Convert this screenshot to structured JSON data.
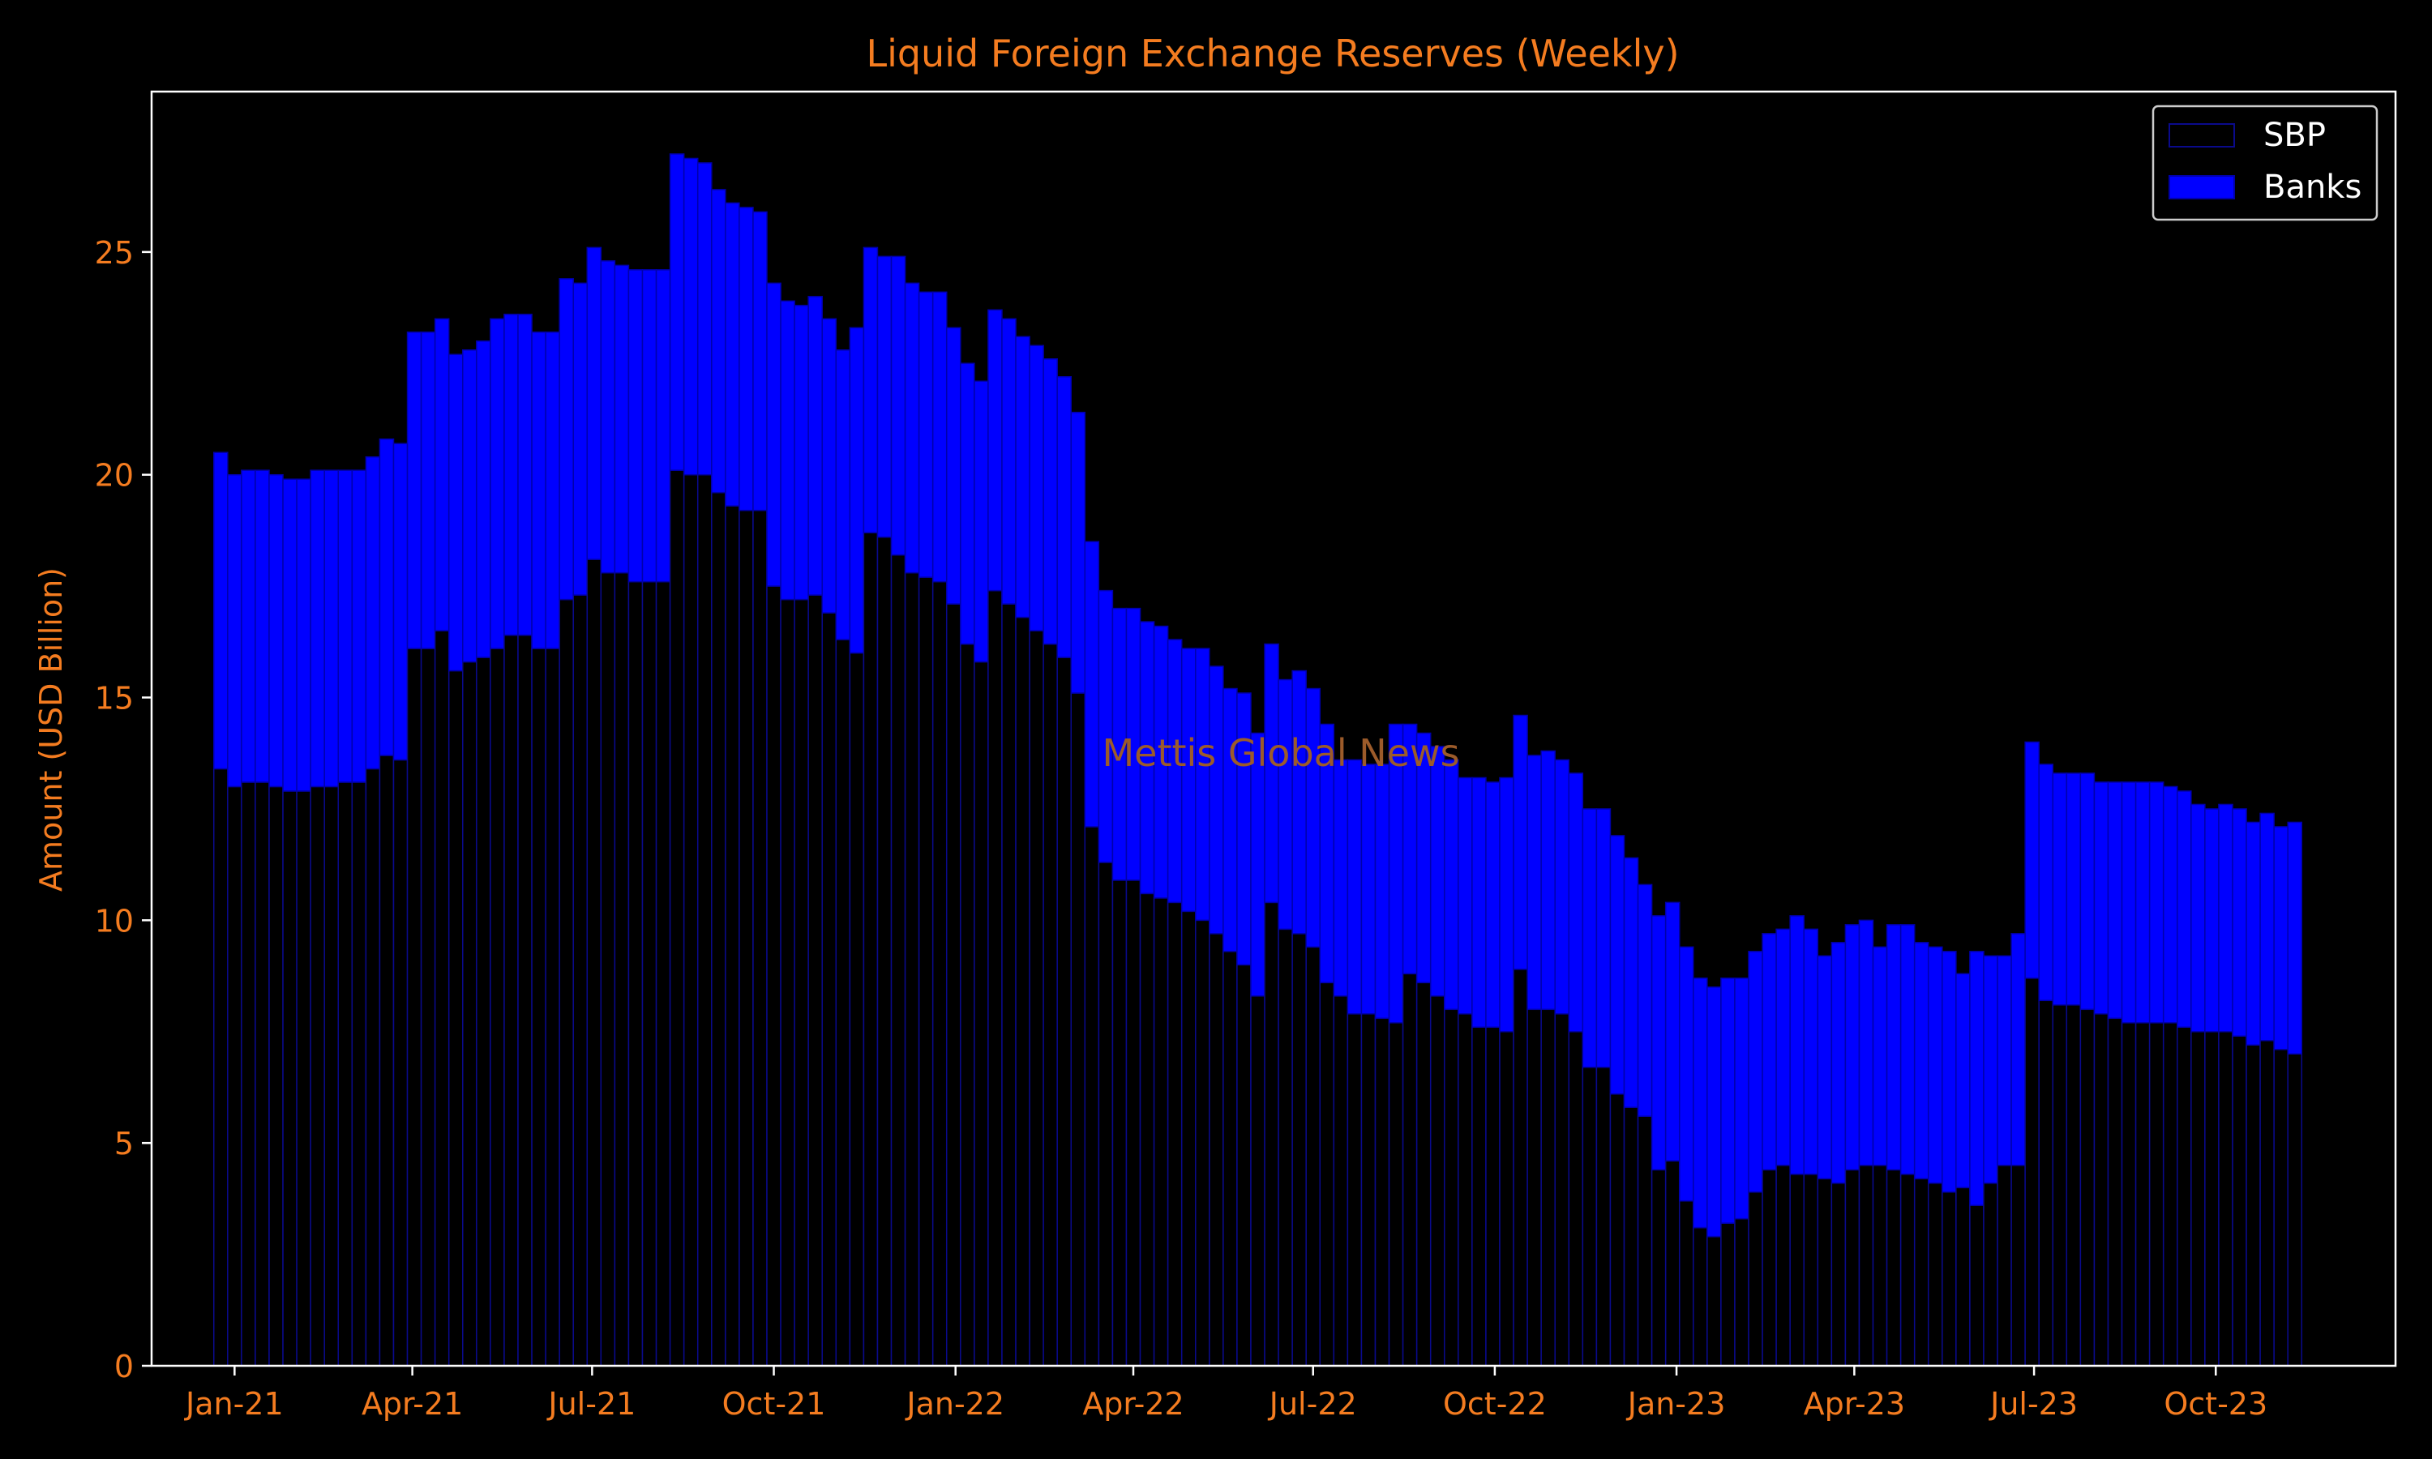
{
  "colors": {
    "background": "#000000",
    "text": "#f47c20",
    "axes": "#ffffff",
    "sbp_fill": "#000000",
    "sbp_edge": "#0a0a8c",
    "banks_fill": "#0000ff",
    "banks_edge": "#0000aa",
    "watermark": "#9c5b2a",
    "legend_text": "#ffffff"
  },
  "watermark": "Mettis Global News",
  "chart_data": {
    "type": "bar",
    "stacked": true,
    "title": "Liquid Foreign Exchange Reserves (Weekly)",
    "xlabel": "",
    "ylabel": "Amount (USD Billion)",
    "ylim": [
      0,
      28.6
    ],
    "yticks": [
      0,
      5,
      10,
      15,
      20,
      25
    ],
    "x_start": "2020-12-25",
    "xlim": [
      "2020-11-20",
      "2023-12-31"
    ],
    "xticks": [
      {
        "date": "2021-01-01",
        "label": "Jan-21"
      },
      {
        "date": "2021-04-01",
        "label": "Apr-21"
      },
      {
        "date": "2021-07-01",
        "label": "Jul-21"
      },
      {
        "date": "2021-10-01",
        "label": "Oct-21"
      },
      {
        "date": "2022-01-01",
        "label": "Jan-22"
      },
      {
        "date": "2022-04-01",
        "label": "Apr-22"
      },
      {
        "date": "2022-07-01",
        "label": "Jul-22"
      },
      {
        "date": "2022-10-01",
        "label": "Oct-22"
      },
      {
        "date": "2023-01-01",
        "label": "Jan-23"
      },
      {
        "date": "2023-04-01",
        "label": "Apr-23"
      },
      {
        "date": "2023-07-01",
        "label": "Jul-23"
      },
      {
        "date": "2023-10-01",
        "label": "Oct-23"
      }
    ],
    "legend": {
      "position": "upper right",
      "entries": [
        "SBP",
        "Banks"
      ]
    },
    "grid": false,
    "series": [
      {
        "name": "SBP",
        "values": [
          13.4,
          13.0,
          13.1,
          13.1,
          13.0,
          12.9,
          12.9,
          13.0,
          13.0,
          13.1,
          13.1,
          13.4,
          13.7,
          13.6,
          16.1,
          16.1,
          16.5,
          15.6,
          15.8,
          15.9,
          16.1,
          16.4,
          16.4,
          16.1,
          16.1,
          17.2,
          17.3,
          18.1,
          17.8,
          17.8,
          17.6,
          17.6,
          17.6,
          20.1,
          20.0,
          20.0,
          19.6,
          19.3,
          19.2,
          19.2,
          17.5,
          17.2,
          17.2,
          17.3,
          16.9,
          16.3,
          16.0,
          18.7,
          18.6,
          18.2,
          17.8,
          17.7,
          17.6,
          17.1,
          16.2,
          15.8,
          17.4,
          17.1,
          16.8,
          16.5,
          16.2,
          15.9,
          15.1,
          12.1,
          11.3,
          10.9,
          10.9,
          10.6,
          10.5,
          10.4,
          10.2,
          10.0,
          9.7,
          9.3,
          9.0,
          8.3,
          10.4,
          9.8,
          9.7,
          9.4,
          8.6,
          8.3,
          7.9,
          7.9,
          7.8,
          7.7,
          8.8,
          8.6,
          8.3,
          8.0,
          7.9,
          7.6,
          7.6,
          7.5,
          8.9,
          8.0,
          8.0,
          7.9,
          7.5,
          6.7,
          6.7,
          6.1,
          5.8,
          5.6,
          4.4,
          4.6,
          3.7,
          3.1,
          2.9,
          3.2,
          3.3,
          3.9,
          4.4,
          4.5,
          4.3,
          4.3,
          4.2,
          4.1,
          4.4,
          4.5,
          4.5,
          4.4,
          4.3,
          4.2,
          4.1,
          3.9,
          4.0,
          3.6,
          4.1,
          4.5,
          4.5,
          8.7,
          8.2,
          8.1,
          8.1,
          8.0,
          7.9,
          7.8,
          7.7,
          7.7,
          7.7,
          7.7,
          7.6,
          7.5,
          7.5,
          7.5,
          7.4,
          7.2,
          7.3,
          7.1,
          7.0
        ]
      },
      {
        "name": "Banks",
        "values": [
          7.1,
          7.0,
          7.0,
          7.0,
          7.0,
          7.0,
          7.0,
          7.1,
          7.1,
          7.0,
          7.0,
          7.0,
          7.1,
          7.1,
          7.1,
          7.1,
          7.0,
          7.1,
          7.0,
          7.1,
          7.4,
          7.2,
          7.2,
          7.1,
          7.1,
          7.2,
          7.0,
          7.0,
          7.0,
          6.9,
          7.0,
          7.0,
          7.0,
          7.1,
          7.1,
          7.0,
          6.8,
          6.8,
          6.8,
          6.7,
          6.8,
          6.7,
          6.6,
          6.7,
          6.6,
          6.5,
          7.3,
          6.4,
          6.3,
          6.7,
          6.5,
          6.4,
          6.5,
          6.2,
          6.3,
          6.3,
          6.3,
          6.4,
          6.3,
          6.4,
          6.4,
          6.3,
          6.3,
          6.4,
          6.1,
          6.1,
          6.1,
          6.1,
          6.1,
          5.9,
          5.9,
          6.1,
          6.0,
          5.9,
          6.1,
          5.9,
          5.8,
          5.6,
          5.9,
          5.8,
          5.8,
          5.3,
          5.7,
          5.6,
          5.7,
          6.7,
          5.6,
          5.6,
          5.6,
          5.6,
          5.3,
          5.6,
          5.5,
          5.7,
          5.7,
          5.7,
          5.8,
          5.7,
          5.8,
          5.8,
          5.8,
          5.8,
          5.6,
          5.2,
          5.7,
          5.8,
          5.7,
          5.6,
          5.6,
          5.5,
          5.4,
          5.4,
          5.3,
          5.3,
          5.8,
          5.5,
          5.0,
          5.4,
          5.5,
          5.5,
          4.9,
          5.5,
          5.6,
          5.3,
          5.3,
          5.4,
          4.8,
          5.7,
          5.1,
          4.7,
          5.2,
          5.3,
          5.3,
          5.2,
          5.2,
          5.3,
          5.2,
          5.3,
          5.4,
          5.4,
          5.4,
          5.3,
          5.3,
          5.1,
          5.0,
          5.1,
          5.1,
          5.0,
          5.1,
          5.0,
          5.2
        ]
      }
    ]
  }
}
